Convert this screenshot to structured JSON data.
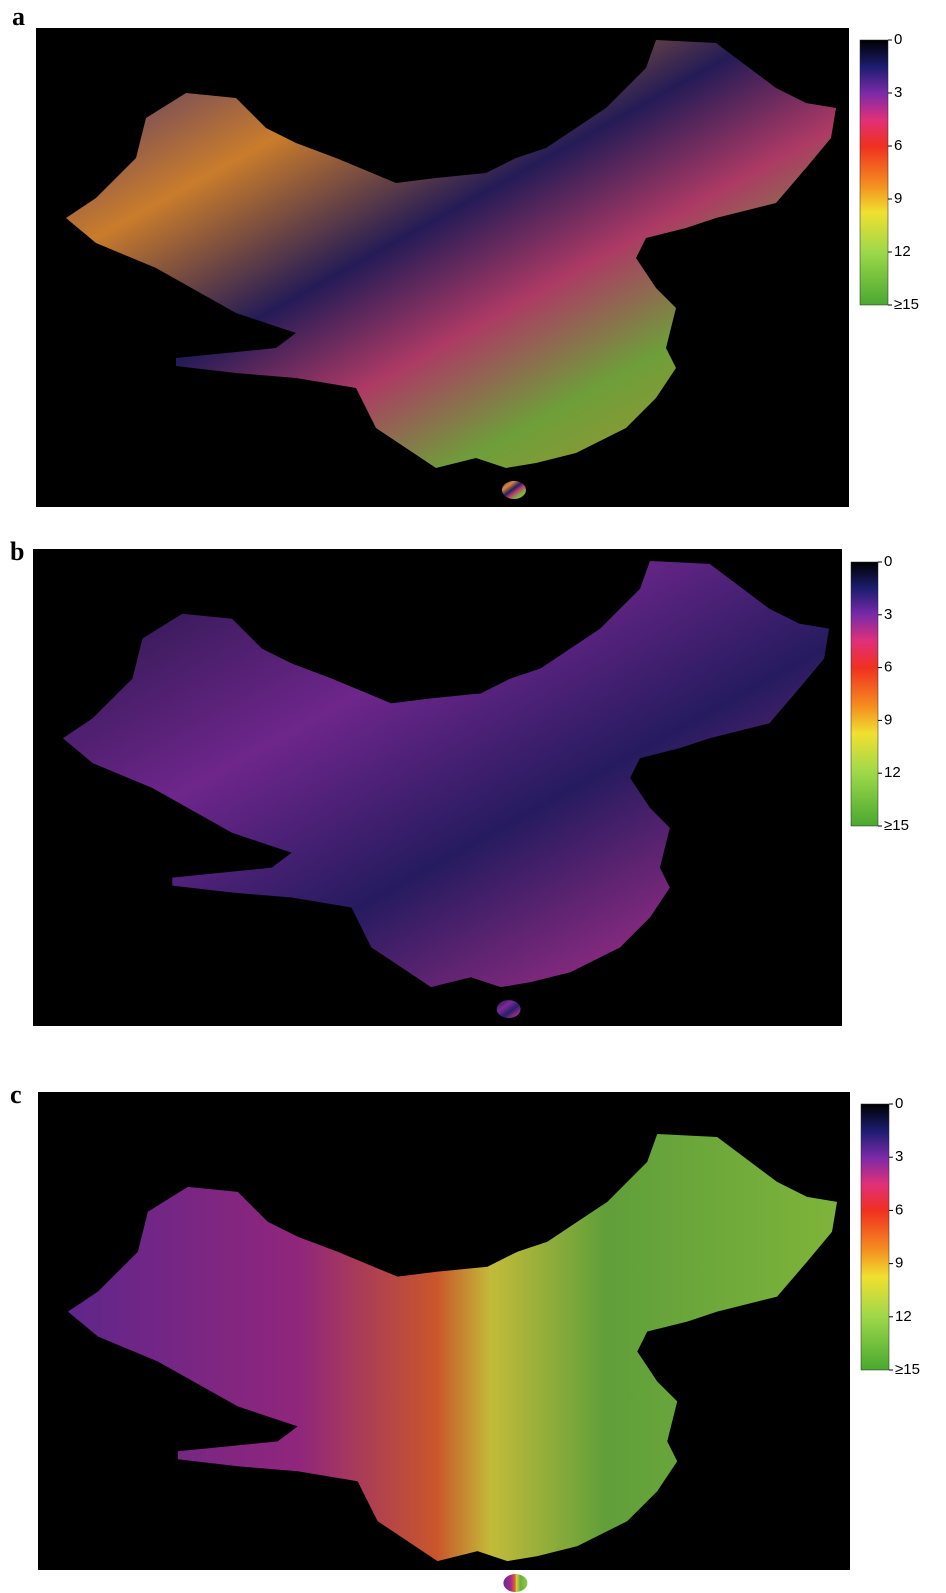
{
  "panels": [
    {
      "label": "a",
      "colorbar": {
        "ticks": [
          0,
          3,
          6,
          9,
          12,
          {
            "value": 15,
            "label": "≥15"
          }
        ]
      }
    },
    {
      "label": "b",
      "colorbar": {
        "ticks": [
          0,
          3,
          6,
          9,
          12,
          {
            "value": 15,
            "label": "≥15"
          }
        ]
      }
    },
    {
      "label": "c",
      "colorbar": {
        "ticks": [
          0,
          3,
          6,
          9,
          12,
          {
            "value": 15,
            "label": "≥15"
          }
        ]
      }
    }
  ]
}
